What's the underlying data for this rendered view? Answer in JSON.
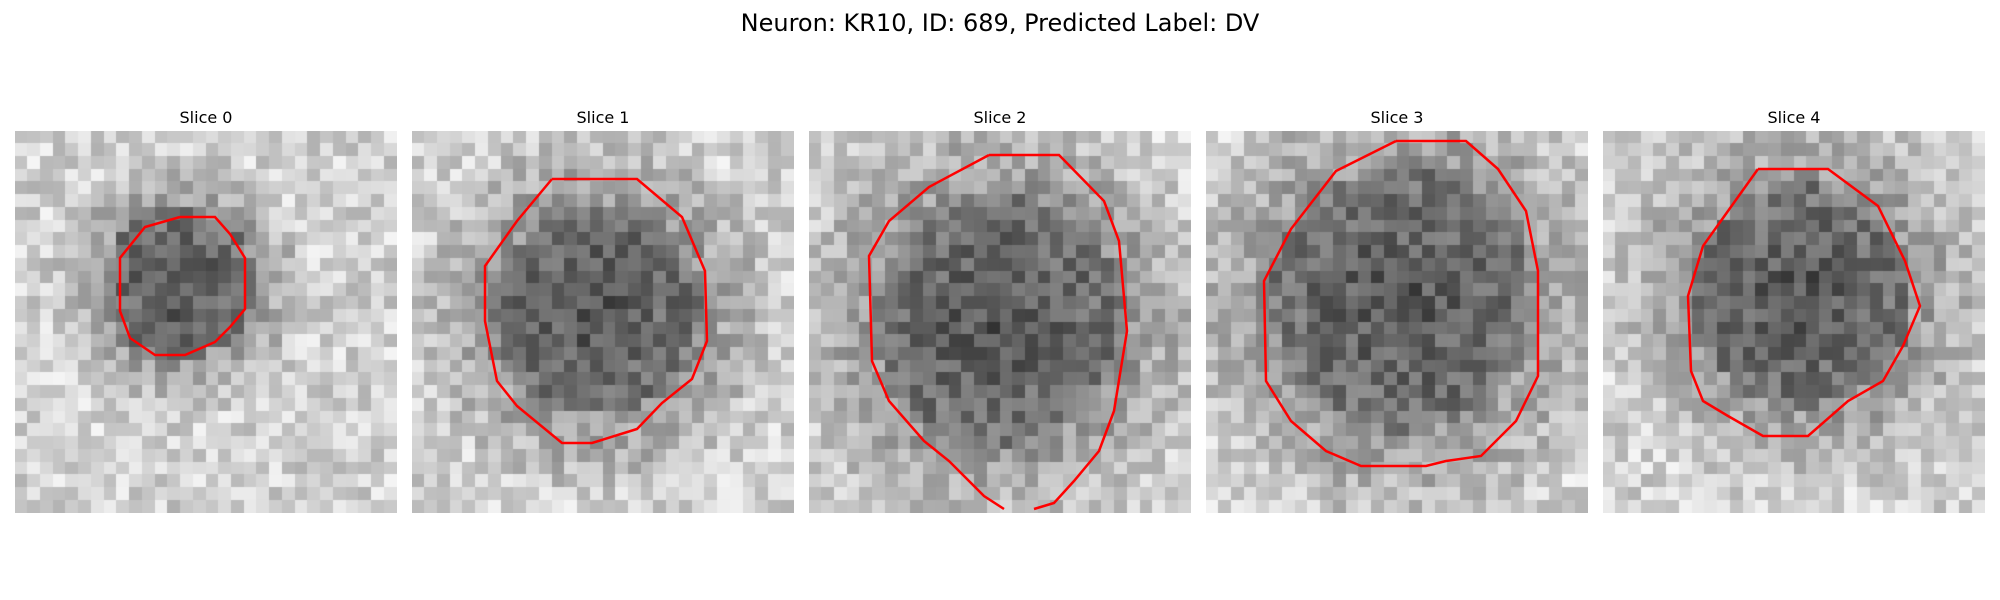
{
  "figure": {
    "title": "Neuron: KR10, ID: 689, Predicted Label: DV"
  },
  "colors": {
    "contour": "#ff0000",
    "background": "#ffffff"
  },
  "panels": [
    {
      "title": "Slice 0",
      "image": "grayscale-microscopy-slice",
      "contour": "red-outline"
    },
    {
      "title": "Slice 1",
      "image": "grayscale-microscopy-slice",
      "contour": "red-outline"
    },
    {
      "title": "Slice 2",
      "image": "grayscale-microscopy-slice",
      "contour": "red-outline"
    },
    {
      "title": "Slice 3",
      "image": "grayscale-microscopy-slice",
      "contour": "red-outline"
    },
    {
      "title": "Slice 4",
      "image": "grayscale-microscopy-slice",
      "contour": "red-outline"
    }
  ]
}
